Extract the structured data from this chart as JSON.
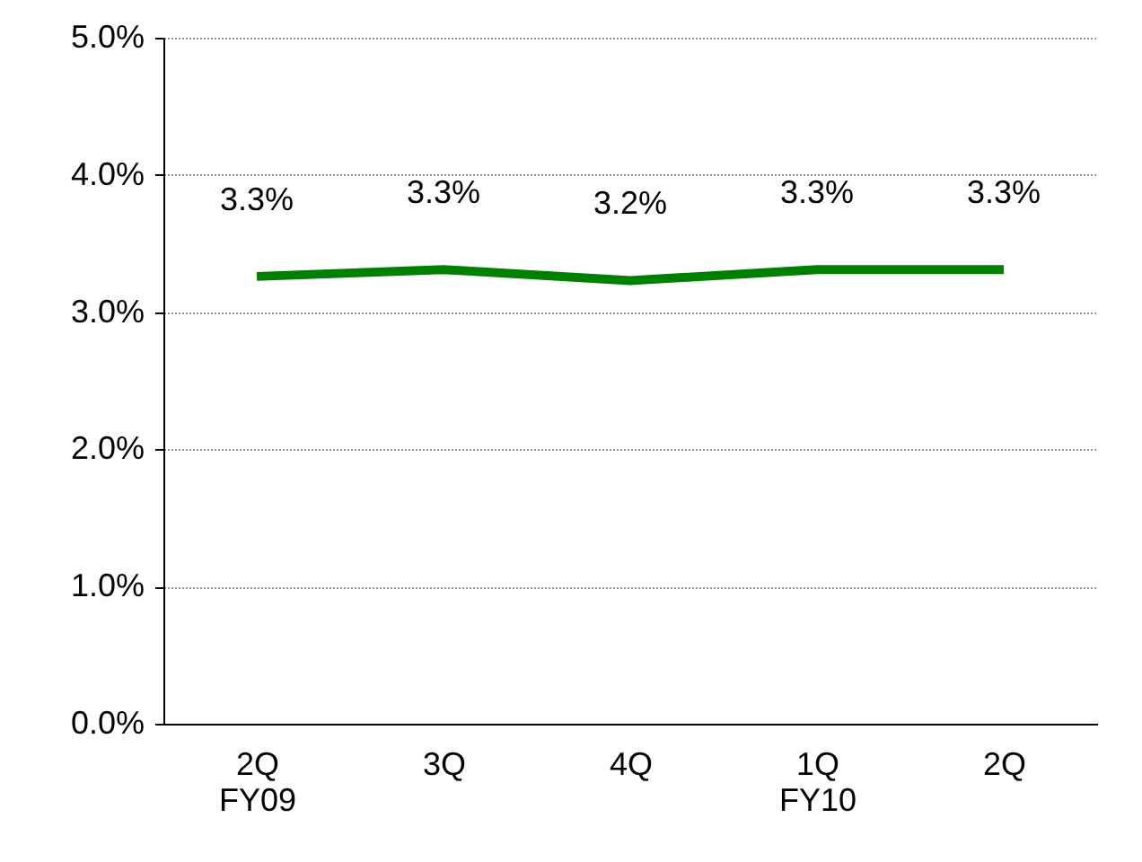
{
  "chart_data": {
    "type": "line",
    "categories": [
      "2Q\nFY09",
      "3Q",
      "4Q",
      "1Q\nFY10",
      "2Q"
    ],
    "series": [
      {
        "color": "#008000",
        "values": [
          3.26,
          3.31,
          3.23,
          3.31,
          3.31
        ],
        "value_labels": [
          "3.3%",
          "3.3%",
          "3.2%",
          "3.3%",
          "3.3%"
        ]
      }
    ],
    "ylim": [
      0,
      5
    ],
    "yticks": [
      {
        "value": 0,
        "label": "0.0%"
      },
      {
        "value": 1,
        "label": "1.0%"
      },
      {
        "value": 2,
        "label": "2.0%"
      },
      {
        "value": 3,
        "label": "3.0%"
      },
      {
        "value": 4,
        "label": "4.0%"
      },
      {
        "value": 5,
        "label": "5.0%"
      }
    ],
    "grid": "y",
    "marker": "none",
    "line_style": "solid"
  }
}
